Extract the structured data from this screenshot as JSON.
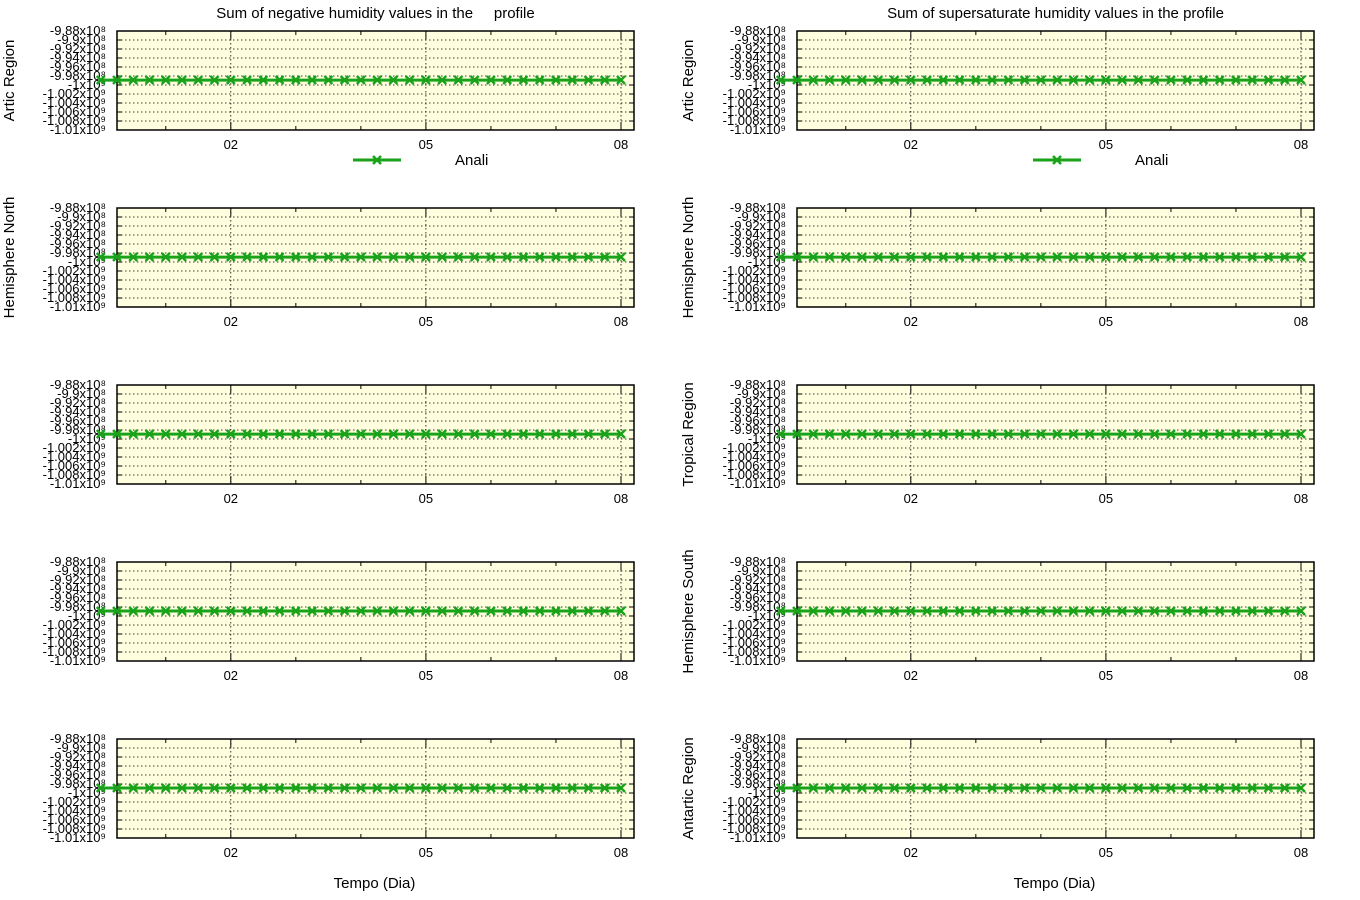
{
  "colors": {
    "plot_background": "#ffffe0",
    "series": "#1aa31a",
    "grid": "#000000"
  },
  "chart_data": {
    "type": "line",
    "x_ticks": [
      "02",
      "05",
      "08"
    ],
    "y_ticks": [
      "-9.88x10⁸",
      "-9.9x10⁸",
      "-9.92x10⁸",
      "-9.94x10⁸",
      "-9.96x10⁸",
      "-9.98x10⁸",
      "-1x10⁹",
      "-1.002x10⁹",
      "-1.004x10⁹",
      "-1.006x10⁹",
      "-1.008x10⁹",
      "-1.01x10⁹"
    ],
    "y_tick_values": [
      -988000000,
      -990000000,
      -992000000,
      -994000000,
      -996000000,
      -998000000,
      -1000000000,
      -1002000000,
      -1004000000,
      -1006000000,
      -1008000000,
      -1010000000
    ],
    "ylim": [
      -1010000000,
      -988000000
    ],
    "xlabel": "Tempo (Dia)",
    "legend_label": "Anali",
    "marker": "x",
    "columns": [
      {
        "title": "Sum of negative humidity values in the     profile"
      },
      {
        "title": "Sum of supersaturate humidity values in the profile"
      }
    ],
    "rows": [
      {
        "left_ylabel": "Artic Region",
        "right_ylabel": "Artic Region"
      },
      {
        "left_ylabel": "Hemisphere North",
        "right_ylabel": "Hemisphere North"
      },
      {
        "left_ylabel": "",
        "right_ylabel": "Tropical Region"
      },
      {
        "left_ylabel": "",
        "right_ylabel": "Hemisphere South"
      },
      {
        "left_ylabel": "",
        "right_ylabel": "Antartic Region"
      }
    ],
    "series": [
      {
        "name": "Anali",
        "x": [
          0,
          0.25,
          0.5,
          0.75,
          1,
          1.25,
          1.5,
          1.75,
          2,
          2.25,
          2.5,
          2.75,
          3,
          3.25,
          3.5,
          3.75,
          4,
          4.25,
          4.5,
          4.75,
          5,
          5.25,
          5.5,
          5.75,
          6,
          6.25,
          6.5,
          6.75,
          7,
          7.25,
          7.5,
          7.75,
          8
        ],
        "values": [
          -998900000,
          -998900000,
          -998900000,
          -998900000,
          -998900000,
          -998900000,
          -998900000,
          -998900000,
          -998900000,
          -998900000,
          -998900000,
          -998900000,
          -998900000,
          -998900000,
          -998900000,
          -998900000,
          -998900000,
          -998900000,
          -998900000,
          -998900000,
          -998900000,
          -998900000,
          -998900000,
          -998900000,
          -998900000,
          -998900000,
          -998900000,
          -998900000,
          -998900000,
          -998900000,
          -998900000,
          -998900000,
          -998900000
        ]
      }
    ]
  }
}
